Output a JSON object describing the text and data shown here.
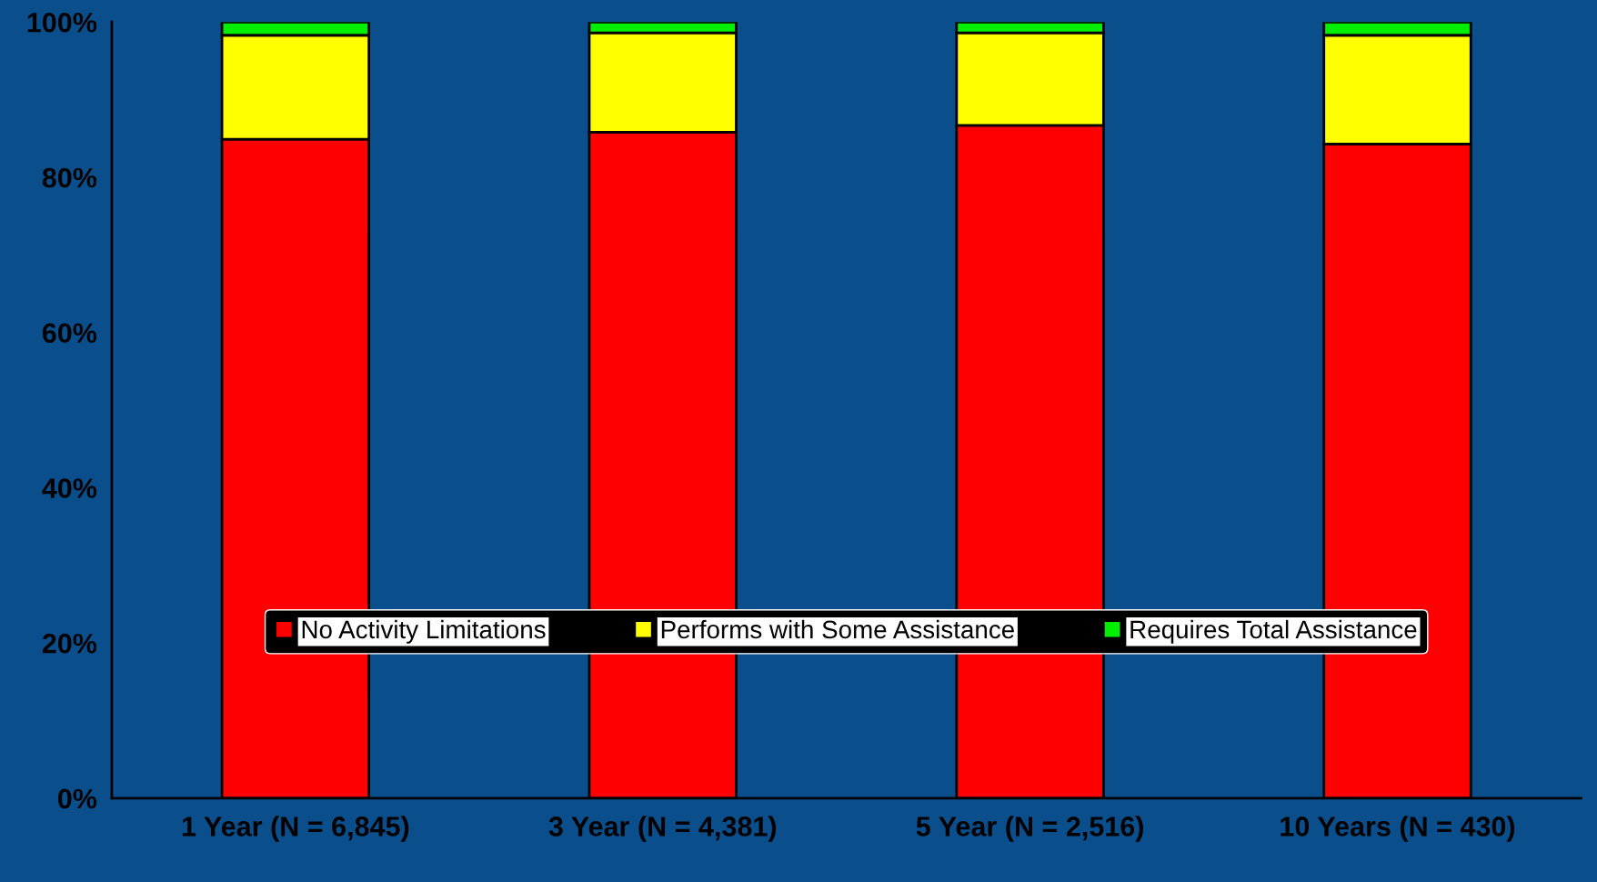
{
  "chart_data": {
    "type": "bar",
    "stacked": true,
    "categories": [
      "1 Year (N = 6,845)",
      "3 Year (N = 4,381)",
      "5 Year (N = 2,516)",
      "10 Years (N = 430)"
    ],
    "series": [
      {
        "name": "No Activity Limitations",
        "color": "#ff0000",
        "values": [
          84.9,
          85.8,
          86.7,
          84.3
        ]
      },
      {
        "name": "Performs with Some Assistance",
        "color": "#ffff00",
        "values": [
          13.4,
          12.8,
          11.9,
          14.0
        ]
      },
      {
        "name": "Requires Total Assistance",
        "color": "#00ee00",
        "values": [
          1.7,
          1.4,
          1.4,
          1.7
        ]
      }
    ],
    "ylim": [
      0,
      100
    ],
    "yticks": [
      {
        "value": 0,
        "label": "0%"
      },
      {
        "value": 20,
        "label": "20%"
      },
      {
        "value": 40,
        "label": "40%"
      },
      {
        "value": 60,
        "label": "60%"
      },
      {
        "value": 80,
        "label": "80%"
      },
      {
        "value": 100,
        "label": "100%"
      }
    ],
    "grid": false,
    "legend": "bottom"
  }
}
